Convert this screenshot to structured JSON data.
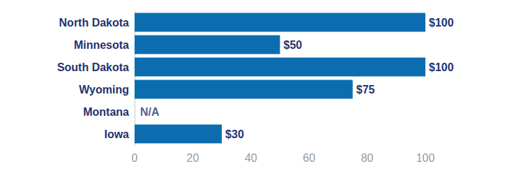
{
  "chart_data": {
    "type": "bar",
    "orientation": "horizontal",
    "categories": [
      "North Dakota",
      "Minnesota",
      "South Dakota",
      "Wyoming",
      "Montana",
      "Iowa"
    ],
    "values": [
      100,
      50,
      100,
      75,
      null,
      30
    ],
    "value_labels": [
      "$100",
      "$50",
      "$100",
      "$75",
      "N/A",
      "$30"
    ],
    "data_labels": true,
    "color": "#0b6db0",
    "xlim": [
      0,
      100
    ],
    "xticks": [
      0,
      20,
      40,
      60,
      80,
      100
    ],
    "grid": false
  }
}
